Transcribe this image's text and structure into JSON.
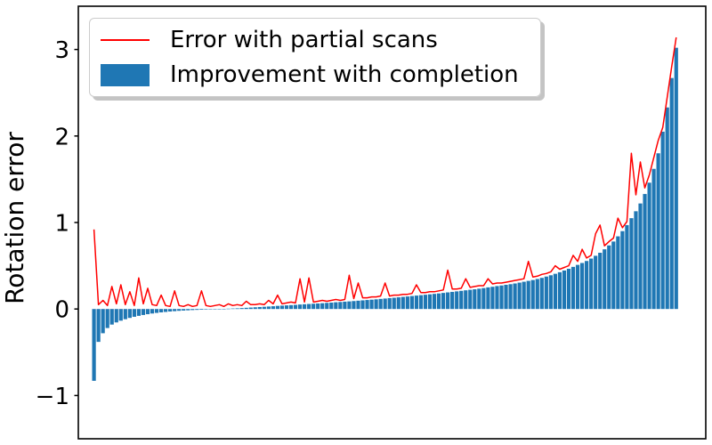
{
  "chart_data": {
    "type": "bar+line",
    "title": "",
    "xlabel": "",
    "ylabel": "Rotation error",
    "ylim": [
      -1.5,
      3.5
    ],
    "ytick_values": [
      -1,
      0,
      1,
      2,
      3
    ],
    "ytick_labels": [
      "−1",
      "0",
      "1",
      "2",
      "3"
    ],
    "x_tick_labels": [],
    "grid": false,
    "legend_position": "upper left",
    "n_points": 131,
    "series": [
      {
        "name": "Error with partial scans",
        "type": "line",
        "color": "#ff0000",
        "values": [
          0.92,
          0.05,
          0.1,
          0.04,
          0.26,
          0.06,
          0.28,
          0.05,
          0.2,
          0.04,
          0.36,
          0.06,
          0.24,
          0.05,
          0.04,
          0.16,
          0.04,
          0.03,
          0.21,
          0.04,
          0.03,
          0.05,
          0.03,
          0.04,
          0.21,
          0.04,
          0.03,
          0.04,
          0.05,
          0.03,
          0.06,
          0.04,
          0.05,
          0.04,
          0.09,
          0.05,
          0.05,
          0.06,
          0.05,
          0.1,
          0.06,
          0.16,
          0.06,
          0.07,
          0.08,
          0.07,
          0.35,
          0.08,
          0.36,
          0.08,
          0.09,
          0.1,
          0.09,
          0.1,
          0.11,
          0.1,
          0.11,
          0.39,
          0.12,
          0.3,
          0.13,
          0.13,
          0.14,
          0.14,
          0.15,
          0.3,
          0.15,
          0.16,
          0.16,
          0.17,
          0.17,
          0.18,
          0.28,
          0.19,
          0.19,
          0.2,
          0.2,
          0.21,
          0.22,
          0.45,
          0.23,
          0.23,
          0.24,
          0.35,
          0.25,
          0.26,
          0.27,
          0.27,
          0.35,
          0.29,
          0.3,
          0.3,
          0.31,
          0.32,
          0.33,
          0.34,
          0.35,
          0.55,
          0.37,
          0.38,
          0.4,
          0.41,
          0.43,
          0.5,
          0.46,
          0.48,
          0.5,
          0.62,
          0.55,
          0.69,
          0.59,
          0.62,
          0.87,
          0.97,
          0.73,
          0.78,
          0.82,
          1.05,
          0.94,
          1.01,
          1.8,
          1.32,
          1.7,
          1.4,
          1.55,
          1.75,
          1.95,
          2.1,
          2.45,
          2.8,
          3.14
        ]
      },
      {
        "name": "Improvement with completion",
        "type": "bar",
        "color": "#1f77b4",
        "values": [
          -0.83,
          -0.38,
          -0.28,
          -0.22,
          -0.18,
          -0.155,
          -0.135,
          -0.118,
          -0.103,
          -0.09,
          -0.079,
          -0.069,
          -0.06,
          -0.052,
          -0.045,
          -0.039,
          -0.034,
          -0.029,
          -0.025,
          -0.021,
          -0.018,
          -0.015,
          -0.012,
          -0.01,
          -0.008,
          -0.006,
          -0.004,
          -0.002,
          0.0,
          0.002,
          0.004,
          0.006,
          0.008,
          0.011,
          0.014,
          0.017,
          0.02,
          0.023,
          0.026,
          0.029,
          0.032,
          0.036,
          0.039,
          0.042,
          0.045,
          0.048,
          0.052,
          0.055,
          0.058,
          0.061,
          0.064,
          0.067,
          0.071,
          0.074,
          0.078,
          0.081,
          0.085,
          0.088,
          0.092,
          0.096,
          0.1,
          0.104,
          0.108,
          0.112,
          0.117,
          0.121,
          0.126,
          0.13,
          0.135,
          0.14,
          0.145,
          0.15,
          0.155,
          0.16,
          0.165,
          0.17,
          0.175,
          0.18,
          0.186,
          0.192,
          0.198,
          0.204,
          0.21,
          0.216,
          0.222,
          0.228,
          0.235,
          0.242,
          0.25,
          0.257,
          0.265,
          0.272,
          0.28,
          0.287,
          0.295,
          0.305,
          0.315,
          0.325,
          0.335,
          0.347,
          0.36,
          0.375,
          0.39,
          0.407,
          0.425,
          0.445,
          0.465,
          0.487,
          0.51,
          0.532,
          0.555,
          0.583,
          0.615,
          0.65,
          0.69,
          0.735,
          0.78,
          0.84,
          0.9,
          0.97,
          1.05,
          1.13,
          1.22,
          1.33,
          1.46,
          1.62,
          1.8,
          2.05,
          2.33,
          2.67,
          3.02
        ]
      }
    ]
  }
}
